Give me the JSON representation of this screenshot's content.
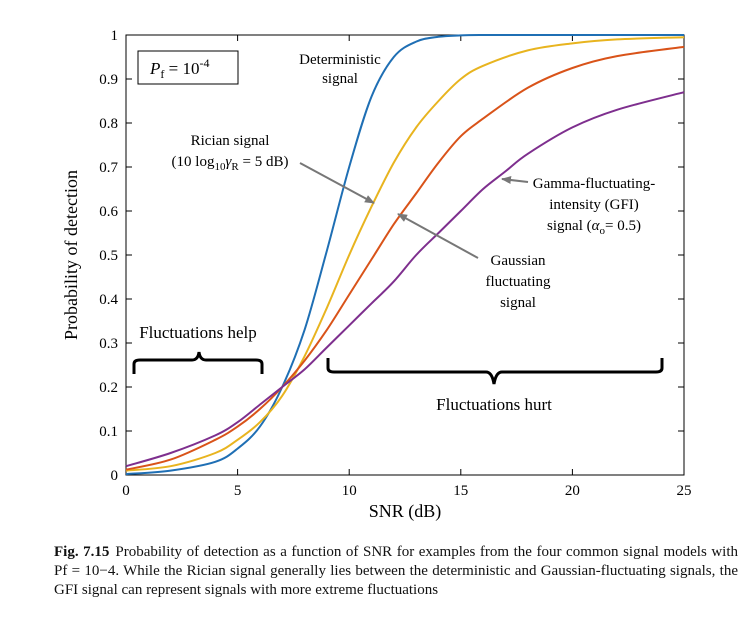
{
  "chart_data": {
    "type": "line",
    "xlabel": "SNR (dB)",
    "ylabel": "Probability of detection",
    "xlim": [
      0,
      25
    ],
    "ylim": [
      0,
      1
    ],
    "xticks": [
      0,
      5,
      10,
      15,
      20,
      25
    ],
    "yticks": [
      0,
      0.1,
      0.2,
      0.3,
      0.4,
      0.5,
      0.6,
      0.7,
      0.8,
      0.9,
      1
    ],
    "xtick_labels": [
      "0",
      "5",
      "10",
      "15",
      "20",
      "25"
    ],
    "ytick_labels": [
      "0",
      "0.1",
      "0.2",
      "0.3",
      "0.4",
      "0.5",
      "0.6",
      "0.7",
      "0.8",
      "0.9",
      "1"
    ],
    "grid": false,
    "series": [
      {
        "name": "Deterministic signal",
        "color": "#1f6fb4",
        "x": [
          0,
          2,
          4,
          5,
          6,
          7,
          8,
          9,
          10,
          11,
          12,
          13,
          14,
          15,
          16,
          18,
          20,
          25
        ],
        "y": [
          0.002,
          0.01,
          0.03,
          0.06,
          0.11,
          0.2,
          0.33,
          0.51,
          0.7,
          0.86,
          0.95,
          0.985,
          0.996,
          0.999,
          1.0,
          1.0,
          1.0,
          1.0
        ]
      },
      {
        "name": "Rician signal",
        "color": "#e8b41f",
        "x": [
          0,
          2,
          4,
          5,
          6,
          7,
          8,
          9,
          10,
          11,
          12,
          13,
          14,
          15,
          16,
          18,
          20,
          22,
          25
        ],
        "y": [
          0.01,
          0.02,
          0.05,
          0.08,
          0.12,
          0.18,
          0.27,
          0.38,
          0.5,
          0.61,
          0.71,
          0.79,
          0.85,
          0.9,
          0.93,
          0.965,
          0.981,
          0.99,
          0.995
        ]
      },
      {
        "name": "Gaussian fluctuating signal",
        "color": "#d95319",
        "x": [
          0,
          2,
          4,
          5,
          6,
          7,
          8,
          9,
          10,
          11,
          12,
          13,
          14,
          15,
          16,
          18,
          20,
          22,
          25
        ],
        "y": [
          0.012,
          0.035,
          0.08,
          0.11,
          0.15,
          0.2,
          0.26,
          0.33,
          0.41,
          0.49,
          0.57,
          0.64,
          0.71,
          0.77,
          0.81,
          0.88,
          0.925,
          0.952,
          0.973
        ]
      },
      {
        "name": "Gamma-fluctuating-intensity (GFI) signal",
        "color": "#7e2f8e",
        "x": [
          0,
          2,
          4,
          5,
          6,
          7,
          8,
          9,
          10,
          11,
          12,
          13,
          14,
          15,
          16,
          17,
          18,
          20,
          22,
          25
        ],
        "y": [
          0.02,
          0.05,
          0.09,
          0.12,
          0.16,
          0.2,
          0.24,
          0.29,
          0.34,
          0.39,
          0.44,
          0.5,
          0.55,
          0.6,
          0.65,
          0.69,
          0.73,
          0.79,
          0.83,
          0.87
        ]
      }
    ],
    "annotations": {
      "pf_box": {
        "prefix": "P",
        "sub": "f",
        "eq": " = 10",
        "sup": "-4"
      },
      "deterministic": [
        "Deterministic",
        "signal"
      ],
      "rician_line1": "Rician signal",
      "rician_line2_pre": "(10 log",
      "rician_line2_sub1": "10",
      "rician_line2_mid": "γ",
      "rician_line2_sub2": "R",
      "rician_line2_post": " = 5 dB)",
      "gaussian": [
        "Gaussian",
        "fluctuating",
        "signal"
      ],
      "gfi_line1": "Gamma-fluctuating-",
      "gfi_line2": "intensity (GFI)",
      "gfi_line3_pre": "signal (",
      "gfi_line3_alpha": "α",
      "gfi_line3_sub": "o",
      "gfi_line3_post": "= 0.5)",
      "fluct_help": "Fluctuations help",
      "fluct_hurt": "Fluctuations hurt"
    }
  },
  "caption": {
    "label": "Fig. 7.15",
    "text": "Probability of detection as a function of SNR for examples from the four common signal models with Pf = 10−4. While the Rician signal generally lies between the deterministic and Gaussian-fluctuating signals, the GFI signal can represent signals with more extreme fluctuations"
  }
}
